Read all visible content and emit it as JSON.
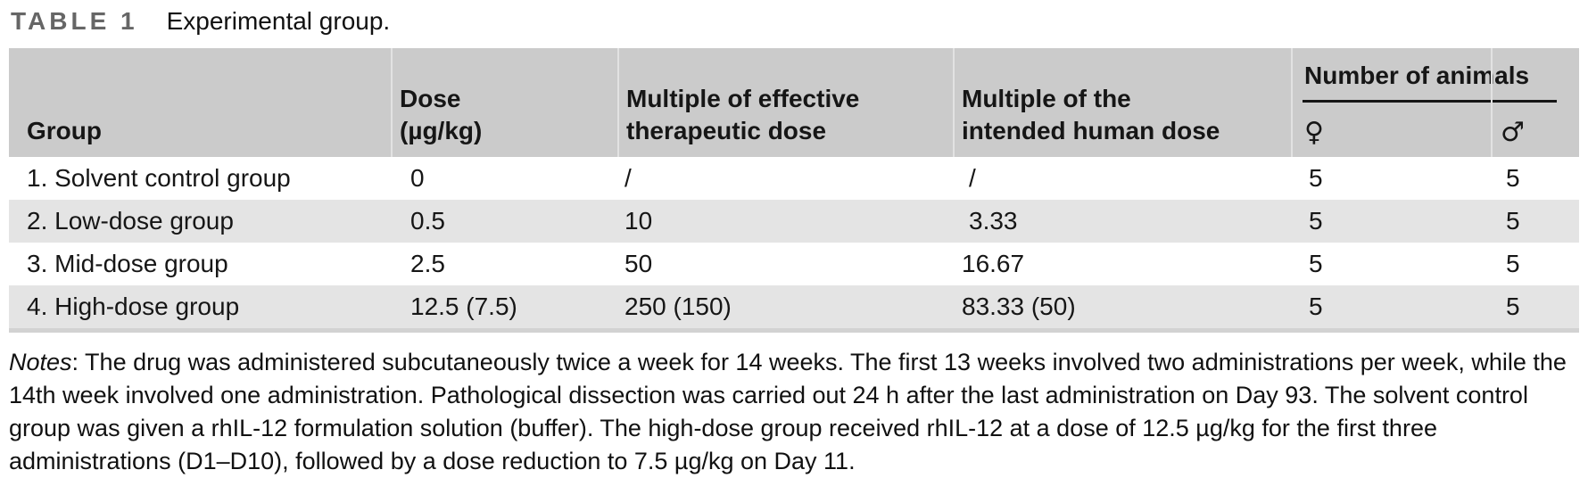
{
  "title": {
    "label": "TABLE 1",
    "caption": "Experimental group."
  },
  "colors": {
    "header_bg": "#cbcbcb",
    "row_stripe_bg": "#e4e4e4",
    "bottom_bar": "#d2d2d2",
    "title_label_color": "#666666",
    "rule_color": "#161616"
  },
  "table": {
    "header": {
      "group": "Group",
      "dose_line1": "Dose",
      "dose_line2": "(µg/kg)",
      "effective_line1": "Multiple of effective",
      "effective_line2": "therapeutic dose",
      "human_line1": "Multiple of the",
      "human_line2": "intended human dose",
      "animals": "Number of animals",
      "female_symbol": "♀",
      "male_symbol": "♂"
    },
    "rows": [
      {
        "group": "1. Solvent control group",
        "dose": "0",
        "multiple_effective": "/",
        "multiple_human": "/",
        "female": "5",
        "male": "5"
      },
      {
        "group": "2. Low-dose group",
        "dose": "0.5",
        "multiple_effective": "10",
        "multiple_human": "3.33",
        "female": "5",
        "male": "5"
      },
      {
        "group": "3. Mid-dose group",
        "dose": "2.5",
        "multiple_effective": "50",
        "multiple_human": "16.67",
        "female": "5",
        "male": "5"
      },
      {
        "group": "4. High-dose group",
        "dose": "12.5 (7.5)",
        "multiple_effective": "250 (150)",
        "multiple_human": "83.33 (50)",
        "female": "5",
        "male": "5"
      }
    ]
  },
  "notes": {
    "label": "Notes",
    "text": ": The drug was administered subcutaneously twice a week for 14 weeks. The first 13 weeks involved two administrations per week, while the 14th week involved one administration. Pathological dissection was carried out 24 h after the last administration on Day 93. The solvent control group was given a rhIL-12 formulation solution (buffer). The high-dose group received rhIL-12 at a dose of 12.5 µg/kg for the first three administrations (D1–D10), followed by a dose reduction to 7.5 µg/kg on Day 11."
  }
}
